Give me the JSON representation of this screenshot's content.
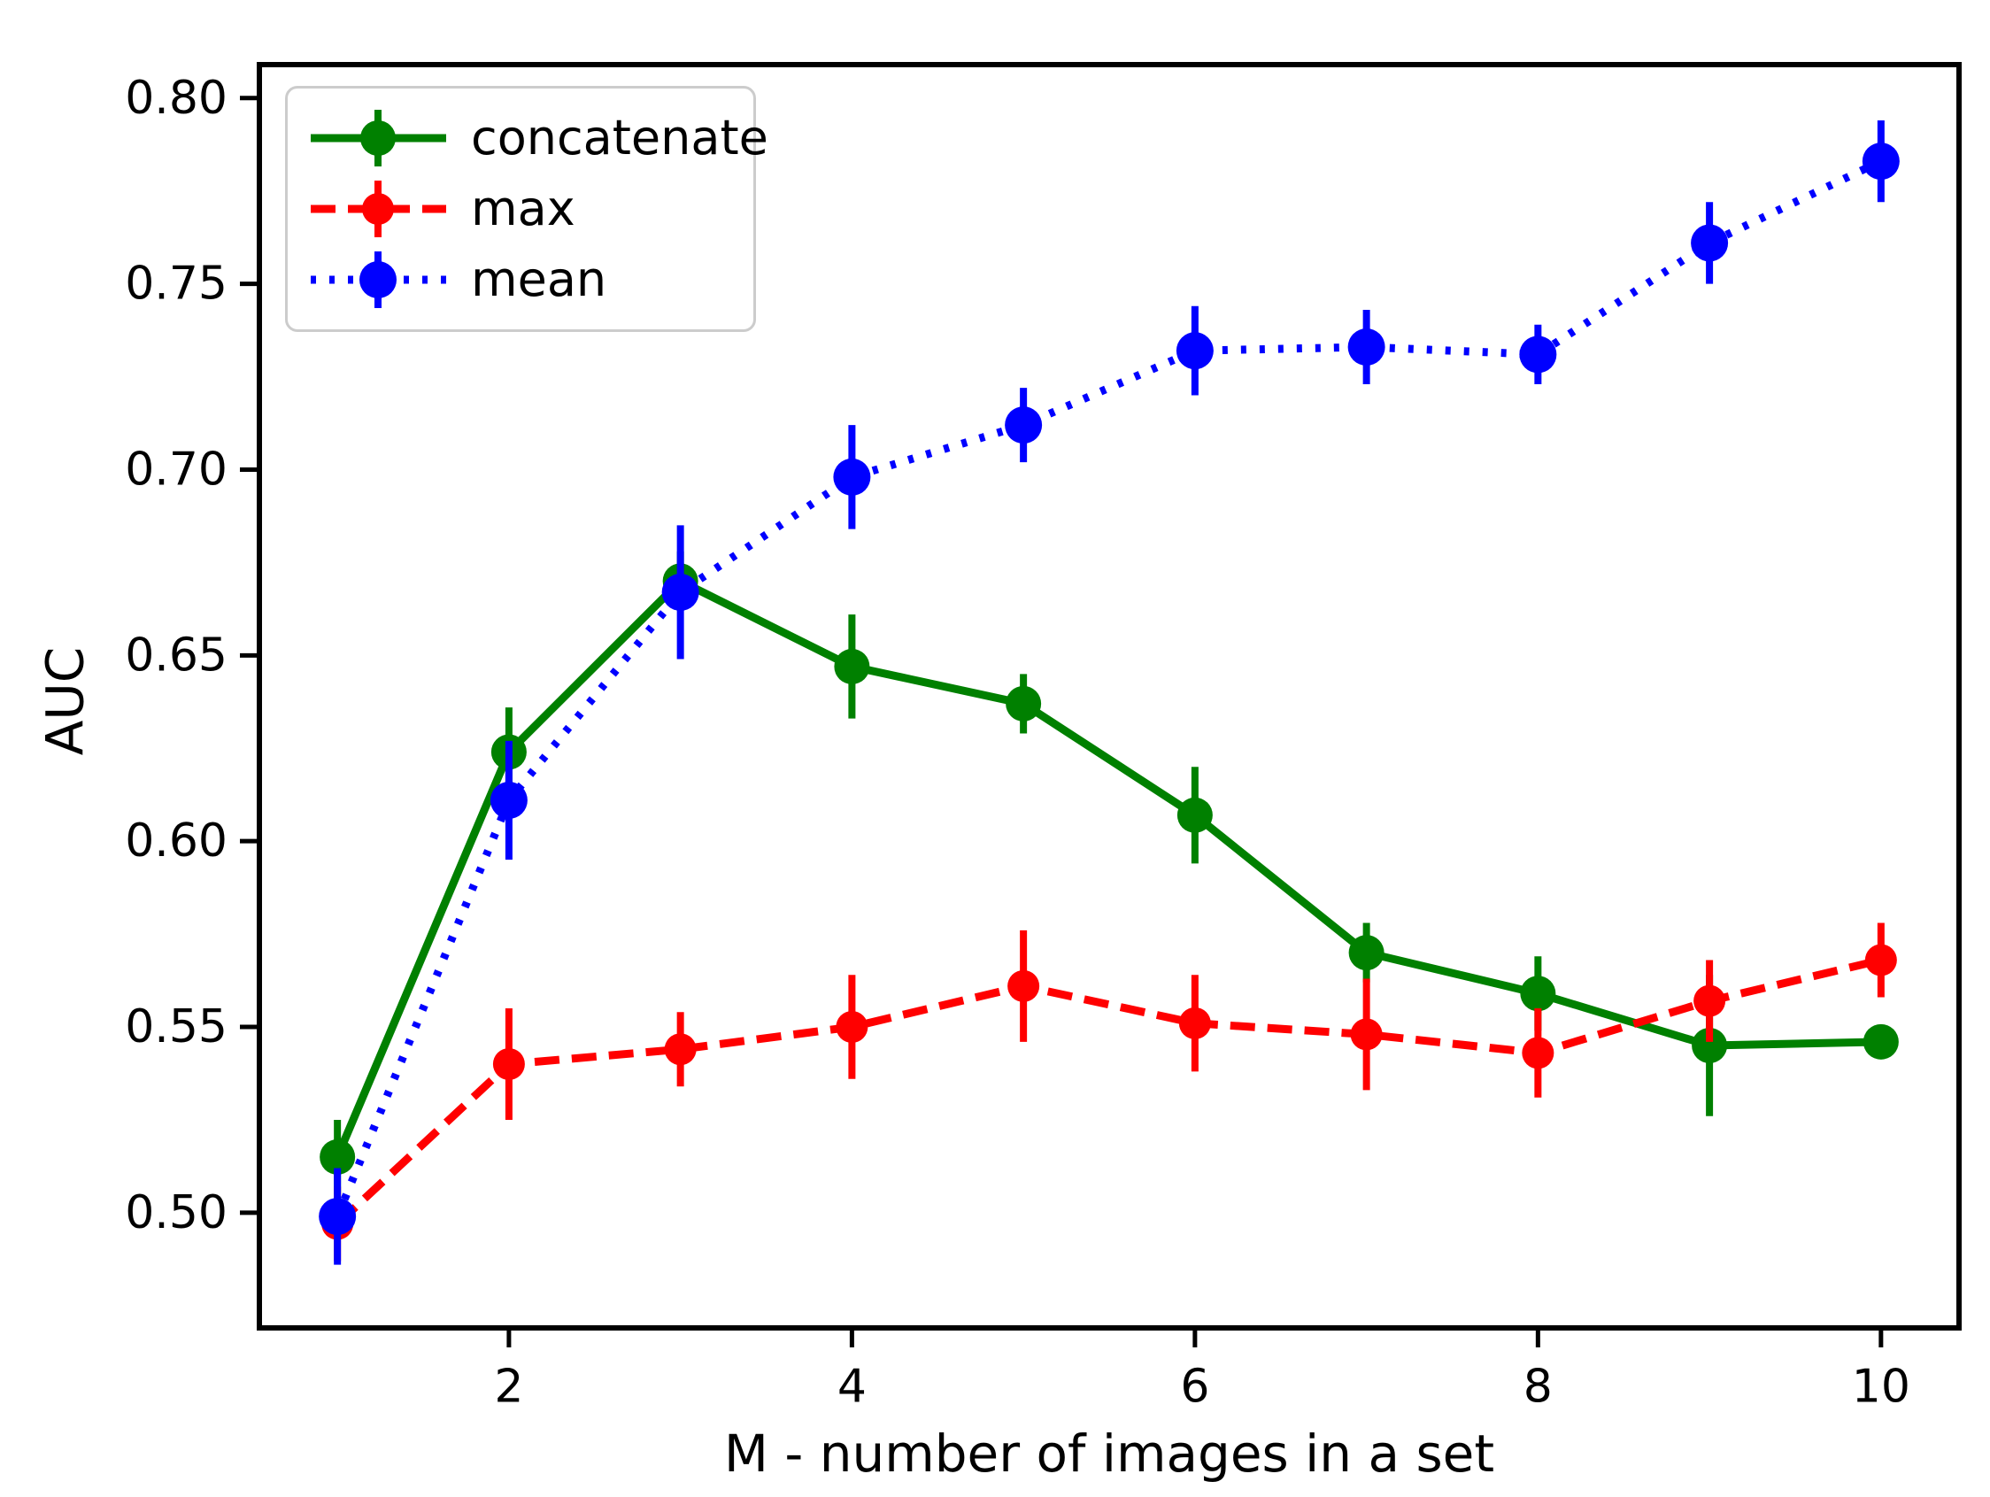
{
  "figure": {
    "background": "#ffffff",
    "axis_color": "#000000"
  },
  "chart_data": {
    "type": "line",
    "title": "",
    "xlabel": "M - number of images in a set",
    "ylabel": "AUC",
    "xlim": [
      0.545,
      10.455
    ],
    "ylim": [
      0.469,
      0.809
    ],
    "xticks": [
      2,
      4,
      6,
      8,
      10
    ],
    "yticks": [
      0.5,
      0.55,
      0.6,
      0.65,
      0.7,
      0.75,
      0.8
    ],
    "ytick_decimals": 2,
    "grid": false,
    "legend_position": "upper-left",
    "x": [
      1,
      2,
      3,
      4,
      5,
      6,
      7,
      8,
      9,
      10
    ],
    "series": [
      {
        "name": "concatenate",
        "color": "#008000",
        "linestyle": "solid",
        "marker": "circle",
        "marker_radius": 20,
        "values": [
          0.515,
          0.624,
          0.67,
          0.647,
          0.637,
          0.607,
          0.57,
          0.559,
          0.545,
          0.546
        ],
        "yerr": [
          0.01,
          0.012,
          0.008,
          0.014,
          0.008,
          0.013,
          0.008,
          0.01,
          0.019,
          0.003
        ]
      },
      {
        "name": "max",
        "color": "#ff0000",
        "linestyle": "dashed",
        "marker": "circle",
        "marker_radius": 18,
        "values": [
          0.497,
          0.54,
          0.544,
          0.55,
          0.561,
          0.551,
          0.548,
          0.543,
          0.557,
          0.568
        ],
        "yerr": [
          0.01,
          0.015,
          0.01,
          0.014,
          0.015,
          0.013,
          0.015,
          0.012,
          0.011,
          0.01
        ]
      },
      {
        "name": "mean",
        "color": "#0000ff",
        "linestyle": "dotted",
        "marker": "circle",
        "marker_radius": 21,
        "values": [
          0.499,
          0.611,
          0.667,
          0.698,
          0.712,
          0.732,
          0.733,
          0.731,
          0.761,
          0.783
        ],
        "yerr": [
          0.013,
          0.016,
          0.018,
          0.014,
          0.01,
          0.012,
          0.01,
          0.008,
          0.011,
          0.011
        ]
      }
    ]
  }
}
